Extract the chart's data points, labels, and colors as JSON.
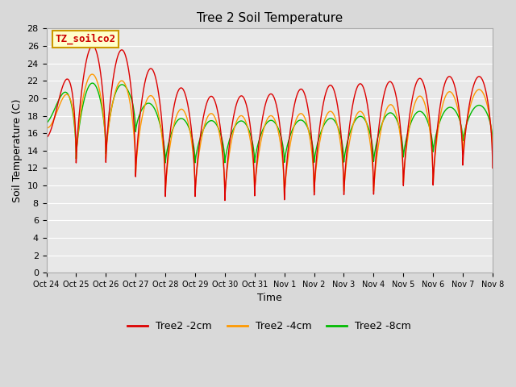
{
  "title": "Tree 2 Soil Temperature",
  "xlabel": "Time",
  "ylabel": "Soil Temperature (C)",
  "ylim": [
    0,
    28
  ],
  "yticks": [
    0,
    2,
    4,
    6,
    8,
    10,
    12,
    14,
    16,
    18,
    20,
    22,
    24,
    26,
    28
  ],
  "xtick_labels": [
    "Oct 24",
    "Oct 25",
    "Oct 26",
    "Oct 27",
    "Oct 28",
    "Oct 29",
    "Oct 30",
    "Oct 31",
    "Nov 1",
    "Nov 2",
    "Nov 3",
    "Nov 4",
    "Nov 5",
    "Nov 6",
    "Nov 7",
    "Nov 8"
  ],
  "legend_labels": [
    "Tree2 -2cm",
    "Tree2 -4cm",
    "Tree2 -8cm"
  ],
  "line_colors": [
    "#dd0000",
    "#ff9900",
    "#00bb00"
  ],
  "annotation_text": "TZ_soilco2",
  "annotation_bg": "#ffffcc",
  "annotation_border": "#cc9900",
  "plot_bg": "#e8e8e8",
  "fig_bg": "#d9d9d9",
  "grid_color": "#ffffff"
}
